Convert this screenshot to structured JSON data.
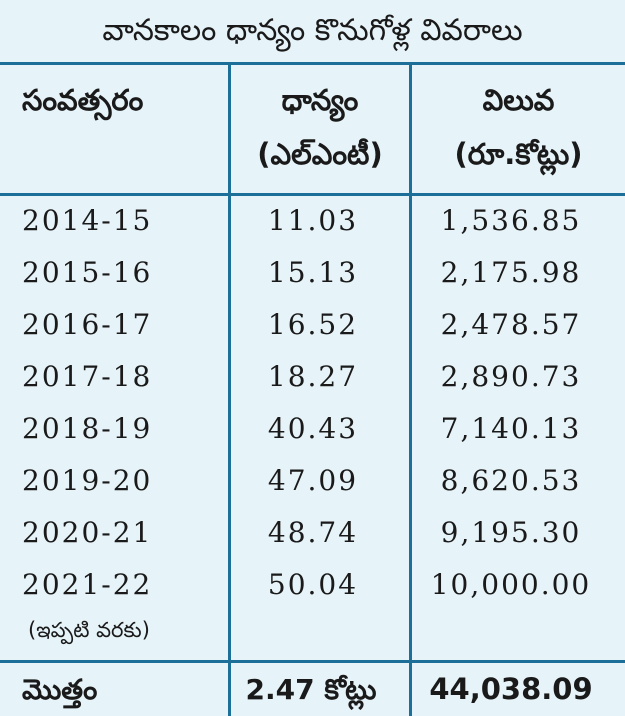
{
  "title": "వానకాలం ధాన్యం కొనుగోళ్ల వివరాలు",
  "headers": {
    "year": "సంవత్సరం",
    "grain_line1": "ధాన్యం",
    "grain_line2": "(ఎల్ఎంటీ)",
    "value_line1": "విలువ",
    "value_line2": "(రూ.కోట్లు)"
  },
  "rows": [
    {
      "year": "2014-15",
      "grain": "11.03",
      "value": "1,536.85"
    },
    {
      "year": "2015-16",
      "grain": "15.13",
      "value": "2,175.98"
    },
    {
      "year": "2016-17",
      "grain": "16.52",
      "value": "2,478.57"
    },
    {
      "year": "2017-18",
      "grain": "18.27",
      "value": "2,890.73"
    },
    {
      "year": "2018-19",
      "grain": "40.43",
      "value": "7,140.13"
    },
    {
      "year": "2019-20",
      "grain": "47.09",
      "value": "8,620.53"
    },
    {
      "year": "2020-21",
      "grain": "48.74",
      "value": "9,195.30"
    },
    {
      "year": "2021-22",
      "grain": "50.04",
      "value": "10,000.00"
    }
  ],
  "note": "(ఇప్పటి వరకు)",
  "total": {
    "label": "మొత్తం",
    "grain": "2.47 కోట్లు",
    "value": "44,038.09"
  },
  "colors": {
    "background": "#e6f3f9",
    "rule": "#1b6f98",
    "text": "#1a1a1a"
  }
}
